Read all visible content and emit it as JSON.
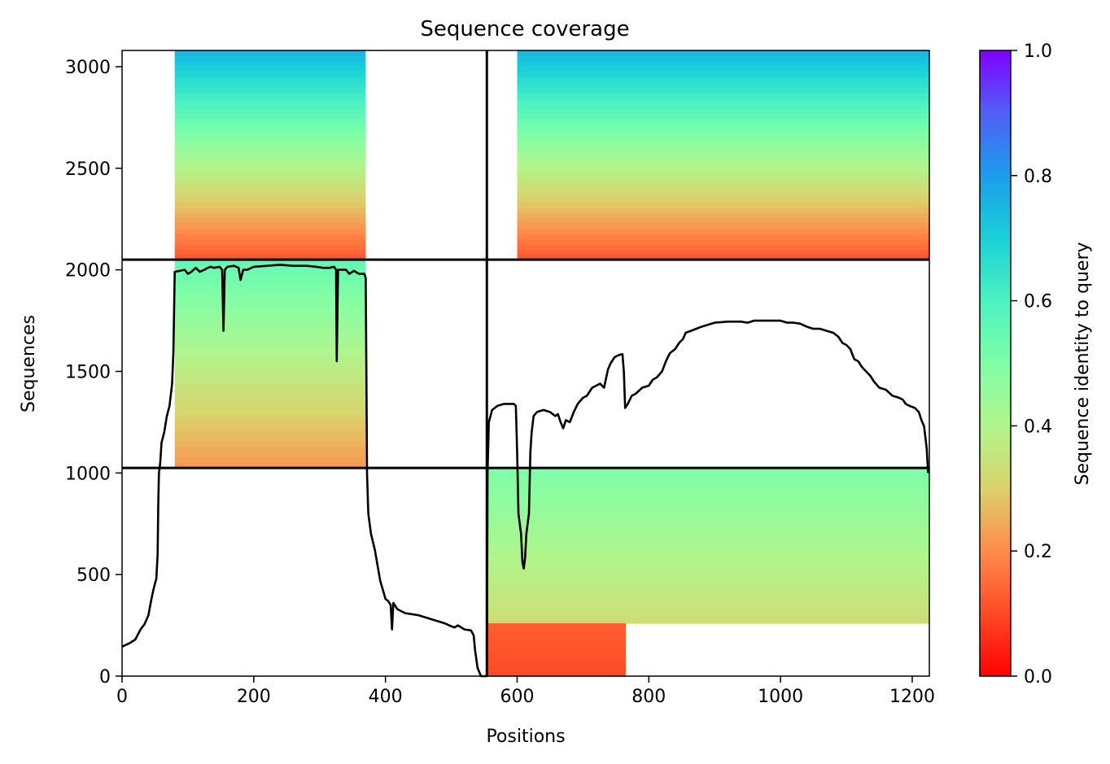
{
  "chart_data": {
    "type": "heatmap",
    "title": "Sequence coverage",
    "xlabel": "Positions",
    "ylabel": "Sequences",
    "xlim": [
      0,
      1226
    ],
    "ylim": [
      0,
      3080
    ],
    "xticks": [
      0,
      200,
      400,
      600,
      800,
      1000,
      1200
    ],
    "yticks": [
      0,
      500,
      1000,
      1500,
      2000,
      2500,
      3000
    ],
    "colorbar": {
      "label": "Sequence identity to query",
      "colormap": "rainbow_r",
      "range": [
        0,
        1
      ],
      "ticks": [
        0.0,
        0.2,
        0.4,
        0.6,
        0.8,
        1.0
      ],
      "tick_labels": [
        "0.0",
        "0.2",
        "0.4",
        "0.6",
        "0.8",
        "1.0"
      ]
    },
    "segment_boundaries": {
      "x": 554,
      "y": [
        1025,
        2050
      ]
    },
    "blocks": [
      {
        "name": "top-left",
        "x_range": [
          0,
          554
        ],
        "y_range": [
          2050,
          3080
        ],
        "core_x": [
          80,
          370
        ],
        "identity_bottom": 0.12,
        "identity_top": 0.75
      },
      {
        "name": "top-right",
        "x_range": [
          554,
          1226
        ],
        "y_range": [
          2050,
          3080
        ],
        "core_x": [
          600,
          1226
        ],
        "identity_bottom": 0.12,
        "identity_top": 0.75
      },
      {
        "name": "middle-left",
        "x_range": [
          0,
          554
        ],
        "y_range": [
          1025,
          2050
        ],
        "core_x": [
          80,
          370
        ],
        "identity_bottom": 0.22,
        "identity_top": 0.55
      },
      {
        "name": "bottom-right-upper",
        "x_range": [
          554,
          1226
        ],
        "y_range": [
          260,
          1025
        ],
        "core_x": [
          554,
          1226
        ],
        "identity_bottom": 0.33,
        "identity_top": 0.5
      },
      {
        "name": "bottom-right-lower",
        "x_range": [
          554,
          765
        ],
        "y_range": [
          0,
          260
        ],
        "core_x": [
          554,
          765
        ],
        "identity_bottom": 0.1,
        "identity_top": 0.13
      }
    ],
    "coverage_line": {
      "color": "#000000",
      "points": [
        [
          0,
          145
        ],
        [
          10,
          160
        ],
        [
          20,
          180
        ],
        [
          28,
          230
        ],
        [
          34,
          255
        ],
        [
          40,
          300
        ],
        [
          44,
          370
        ],
        [
          48,
          430
        ],
        [
          52,
          480
        ],
        [
          54,
          600
        ],
        [
          55,
          850
        ],
        [
          56,
          1000
        ],
        [
          58,
          1050
        ],
        [
          60,
          1150
        ],
        [
          64,
          1200
        ],
        [
          68,
          1280
        ],
        [
          72,
          1330
        ],
        [
          76,
          1440
        ],
        [
          78,
          1600
        ],
        [
          80,
          1990
        ],
        [
          95,
          2000
        ],
        [
          100,
          1980
        ],
        [
          105,
          1990
        ],
        [
          112,
          2010
        ],
        [
          118,
          1990
        ],
        [
          125,
          2000
        ],
        [
          130,
          2010
        ],
        [
          135,
          2015
        ],
        [
          140,
          2010
        ],
        [
          148,
          2015
        ],
        [
          152,
          2000
        ],
        [
          154,
          1700
        ],
        [
          156,
          2000
        ],
        [
          160,
          2015
        ],
        [
          170,
          2020
        ],
        [
          177,
          2010
        ],
        [
          180,
          1950
        ],
        [
          184,
          2000
        ],
        [
          190,
          2000
        ],
        [
          200,
          2015
        ],
        [
          220,
          2020
        ],
        [
          240,
          2025
        ],
        [
          260,
          2020
        ],
        [
          280,
          2020
        ],
        [
          295,
          2015
        ],
        [
          305,
          2010
        ],
        [
          315,
          2010
        ],
        [
          322,
          2015
        ],
        [
          325,
          2000
        ],
        [
          326,
          1550
        ],
        [
          328,
          2000
        ],
        [
          340,
          2000
        ],
        [
          345,
          1980
        ],
        [
          352,
          1995
        ],
        [
          360,
          1980
        ],
        [
          368,
          1980
        ],
        [
          370,
          1960
        ],
        [
          371,
          1500
        ],
        [
          372,
          1000
        ],
        [
          374,
          800
        ],
        [
          378,
          700
        ],
        [
          384,
          620
        ],
        [
          392,
          470
        ],
        [
          400,
          380
        ],
        [
          404,
          370
        ],
        [
          408,
          350
        ],
        [
          410,
          230
        ],
        [
          412,
          360
        ],
        [
          418,
          330
        ],
        [
          430,
          310
        ],
        [
          450,
          300
        ],
        [
          470,
          280
        ],
        [
          490,
          260
        ],
        [
          500,
          245
        ],
        [
          505,
          240
        ],
        [
          510,
          250
        ],
        [
          520,
          230
        ],
        [
          530,
          225
        ],
        [
          534,
          200
        ],
        [
          536,
          130
        ],
        [
          540,
          40
        ],
        [
          545,
          0
        ],
        [
          554,
          0
        ],
        [
          555,
          1000
        ],
        [
          557,
          1250
        ],
        [
          562,
          1310
        ],
        [
          570,
          1330
        ],
        [
          580,
          1340
        ],
        [
          595,
          1340
        ],
        [
          598,
          1330
        ],
        [
          600,
          1100
        ],
        [
          602,
          800
        ],
        [
          606,
          700
        ],
        [
          608,
          560
        ],
        [
          610,
          530
        ],
        [
          612,
          580
        ],
        [
          614,
          700
        ],
        [
          616,
          750
        ],
        [
          618,
          800
        ],
        [
          620,
          1100
        ],
        [
          622,
          1200
        ],
        [
          625,
          1280
        ],
        [
          630,
          1300
        ],
        [
          640,
          1310
        ],
        [
          650,
          1300
        ],
        [
          658,
          1280
        ],
        [
          662,
          1290
        ],
        [
          666,
          1250
        ],
        [
          670,
          1220
        ],
        [
          674,
          1260
        ],
        [
          680,
          1250
        ],
        [
          686,
          1300
        ],
        [
          692,
          1340
        ],
        [
          700,
          1370
        ],
        [
          706,
          1380
        ],
        [
          714,
          1420
        ],
        [
          720,
          1430
        ],
        [
          726,
          1440
        ],
        [
          732,
          1420
        ],
        [
          738,
          1510
        ],
        [
          742,
          1540
        ],
        [
          748,
          1570
        ],
        [
          754,
          1580
        ],
        [
          760,
          1585
        ],
        [
          762,
          1500
        ],
        [
          764,
          1320
        ],
        [
          768,
          1340
        ],
        [
          774,
          1380
        ],
        [
          780,
          1390
        ],
        [
          790,
          1420
        ],
        [
          800,
          1430
        ],
        [
          806,
          1460
        ],
        [
          812,
          1470
        ],
        [
          820,
          1500
        ],
        [
          826,
          1550
        ],
        [
          832,
          1590
        ],
        [
          840,
          1610
        ],
        [
          846,
          1640
        ],
        [
          852,
          1660
        ],
        [
          856,
          1690
        ],
        [
          864,
          1700
        ],
        [
          872,
          1710
        ],
        [
          880,
          1720
        ],
        [
          890,
          1730
        ],
        [
          900,
          1740
        ],
        [
          920,
          1745
        ],
        [
          940,
          1745
        ],
        [
          950,
          1740
        ],
        [
          960,
          1750
        ],
        [
          980,
          1750
        ],
        [
          1000,
          1750
        ],
        [
          1010,
          1740
        ],
        [
          1020,
          1740
        ],
        [
          1030,
          1735
        ],
        [
          1040,
          1720
        ],
        [
          1050,
          1710
        ],
        [
          1060,
          1710
        ],
        [
          1070,
          1700
        ],
        [
          1080,
          1690
        ],
        [
          1088,
          1670
        ],
        [
          1094,
          1640
        ],
        [
          1100,
          1630
        ],
        [
          1106,
          1610
        ],
        [
          1112,
          1560
        ],
        [
          1118,
          1550
        ],
        [
          1124,
          1520
        ],
        [
          1130,
          1500
        ],
        [
          1136,
          1480
        ],
        [
          1142,
          1450
        ],
        [
          1150,
          1420
        ],
        [
          1160,
          1410
        ],
        [
          1170,
          1380
        ],
        [
          1180,
          1370
        ],
        [
          1186,
          1360
        ],
        [
          1190,
          1340
        ],
        [
          1196,
          1330
        ],
        [
          1204,
          1320
        ],
        [
          1210,
          1300
        ],
        [
          1214,
          1260
        ],
        [
          1218,
          1230
        ],
        [
          1222,
          1120
        ],
        [
          1224,
          1000
        ]
      ]
    }
  }
}
